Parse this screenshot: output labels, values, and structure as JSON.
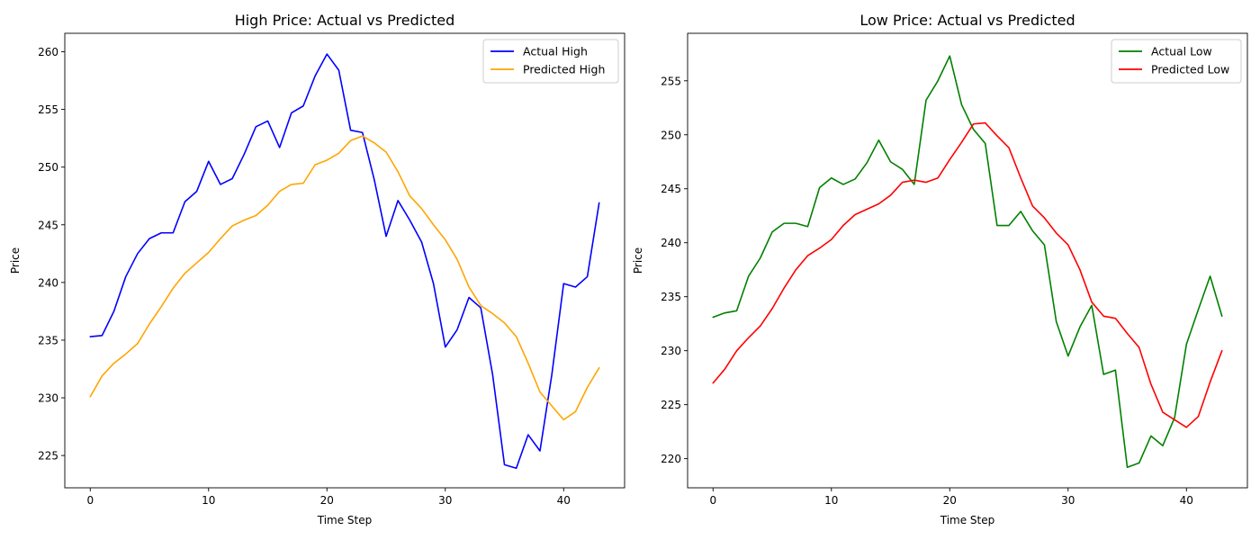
{
  "chart_data": [
    {
      "type": "line",
      "title": "High Price: Actual vs Predicted",
      "xlabel": "Time Step",
      "ylabel": "Price",
      "xlim": [
        -2.15,
        45.15
      ],
      "ylim": [
        222.2,
        261.6
      ],
      "xticks": [
        0,
        10,
        20,
        30,
        40
      ],
      "yticks": [
        225,
        230,
        235,
        240,
        245,
        250,
        255,
        260
      ],
      "grid": false,
      "legend_position": "top-right",
      "x": [
        0,
        1,
        2,
        3,
        4,
        5,
        6,
        7,
        8,
        9,
        10,
        11,
        12,
        13,
        14,
        15,
        16,
        17,
        18,
        19,
        20,
        21,
        22,
        23,
        24,
        25,
        26,
        27,
        28,
        29,
        30,
        31,
        32,
        33,
        34,
        35,
        36,
        37,
        38,
        39,
        40,
        41,
        42,
        43
      ],
      "series": [
        {
          "name": "Actual High",
          "color": "#0000ff",
          "values": [
            235.3,
            235.4,
            237.5,
            240.5,
            242.5,
            243.8,
            244.3,
            244.3,
            247.0,
            247.9,
            250.5,
            248.5,
            249.0,
            251.1,
            253.5,
            254.0,
            251.7,
            254.7,
            255.3,
            257.9,
            259.8,
            258.4,
            253.2,
            253.0,
            248.9,
            244.0,
            247.1,
            245.4,
            243.5,
            239.9,
            234.4,
            235.9,
            238.7,
            237.8,
            232.0,
            224.2,
            223.9,
            226.8,
            225.4,
            232.0,
            239.9,
            239.6,
            240.5,
            246.9
          ]
        },
        {
          "name": "Predicted High",
          "color": "#ffa500",
          "values": [
            230.1,
            231.9,
            233.0,
            233.8,
            234.7,
            236.4,
            237.9,
            239.5,
            240.8,
            241.7,
            242.6,
            243.8,
            244.9,
            245.4,
            245.8,
            246.7,
            247.9,
            248.5,
            248.6,
            250.2,
            250.6,
            251.2,
            252.3,
            252.7,
            252.1,
            251.3,
            249.6,
            247.5,
            246.4,
            245.0,
            243.7,
            242.0,
            239.6,
            238.0,
            237.3,
            236.5,
            235.3,
            233.0,
            230.5,
            229.3,
            228.1,
            228.8,
            230.9,
            232.6
          ]
        }
      ]
    },
    {
      "type": "line",
      "title": "Low Price: Actual vs Predicted",
      "xlabel": "Time Step",
      "ylabel": "Price",
      "xlim": [
        -2.15,
        45.15
      ],
      "ylim": [
        217.3,
        259.4
      ],
      "xticks": [
        0,
        10,
        20,
        30,
        40
      ],
      "yticks": [
        220,
        225,
        230,
        235,
        240,
        245,
        250,
        255
      ],
      "grid": false,
      "legend_position": "top-right",
      "x": [
        0,
        1,
        2,
        3,
        4,
        5,
        6,
        7,
        8,
        9,
        10,
        11,
        12,
        13,
        14,
        15,
        16,
        17,
        18,
        19,
        20,
        21,
        22,
        23,
        24,
        25,
        26,
        27,
        28,
        29,
        30,
        31,
        32,
        33,
        34,
        35,
        36,
        37,
        38,
        39,
        40,
        41,
        42,
        43
      ],
      "series": [
        {
          "name": "Actual Low",
          "color": "#008000",
          "values": [
            233.1,
            233.5,
            233.7,
            236.9,
            238.6,
            241.0,
            241.8,
            241.8,
            241.5,
            245.1,
            246.0,
            245.4,
            245.9,
            247.4,
            249.5,
            247.5,
            246.8,
            245.4,
            253.2,
            255.0,
            257.3,
            252.8,
            250.5,
            249.2,
            241.6,
            241.6,
            242.9,
            241.1,
            239.8,
            232.7,
            229.5,
            232.2,
            234.2,
            227.8,
            228.2,
            219.2,
            219.6,
            222.1,
            221.2,
            223.8,
            230.6,
            233.8,
            236.9,
            233.2
          ]
        },
        {
          "name": "Predicted Low",
          "color": "#ff0000",
          "values": [
            227.0,
            228.3,
            230.0,
            231.2,
            232.3,
            233.9,
            235.8,
            237.5,
            238.8,
            239.5,
            240.3,
            241.6,
            242.6,
            243.1,
            243.6,
            244.4,
            245.6,
            245.8,
            245.6,
            246.0,
            247.7,
            249.3,
            251.0,
            251.1,
            249.9,
            248.8,
            246.0,
            243.4,
            242.3,
            240.9,
            239.8,
            237.5,
            234.5,
            233.2,
            233.0,
            231.6,
            230.3,
            226.9,
            224.3,
            223.6,
            222.9,
            223.9,
            227.1,
            230.0
          ]
        }
      ]
    }
  ]
}
